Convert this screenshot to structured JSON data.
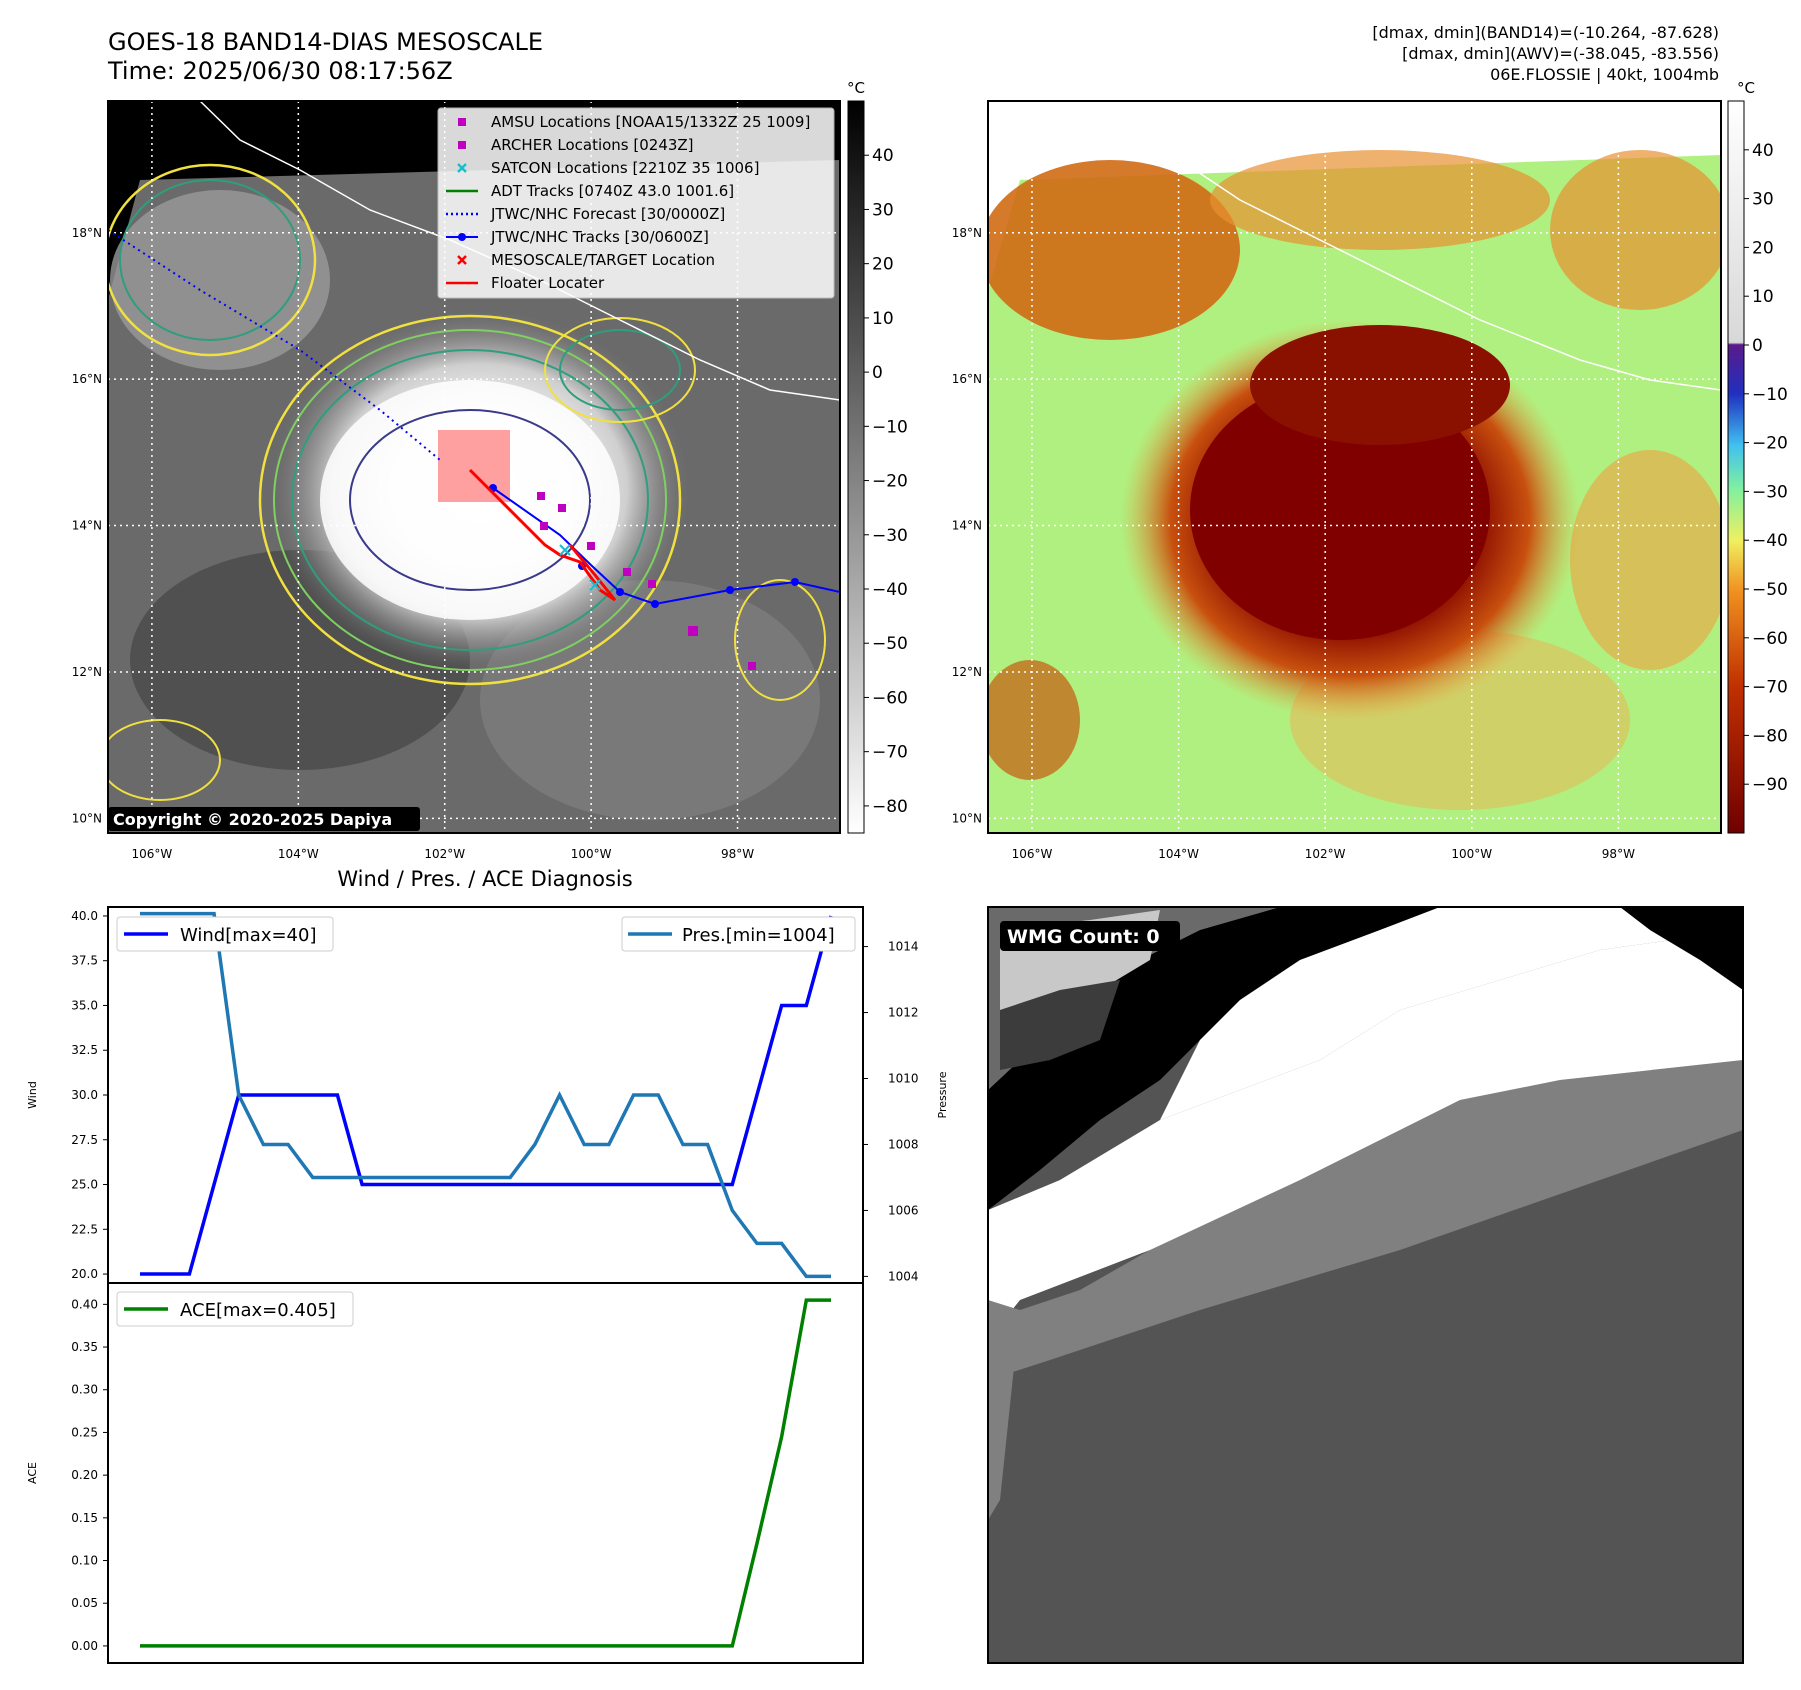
{
  "header": {
    "title_line1": "GOES-18 BAND14-DIAS MESOSCALE",
    "title_line2": "Time: 2025/06/30 08:17:56Z",
    "info_line1": "[dmax, dmin](BAND14)=(-10.264, -87.628)",
    "info_line2": "[dmax, dmin](AWV)=(-38.045, -83.556)",
    "info_line3": "06E.FLOSSIE | 40kt, 1004mb"
  },
  "map_axes": {
    "lat_labels": [
      "18°N",
      "16°N",
      "14°N",
      "12°N",
      "10°N"
    ],
    "lon_labels": [
      "106°W",
      "104°W",
      "102°W",
      "100°W",
      "98°W"
    ],
    "lat_values": [
      18,
      16,
      14,
      12,
      10
    ],
    "lon_values": [
      -106,
      -104,
      -102,
      -100,
      -98
    ],
    "lat_range": [
      9.8,
      19.8
    ],
    "lon_range": [
      -106.6,
      -96.6
    ]
  },
  "left_map": {
    "copyright": "Copyright © 2020-2025 Dapiya",
    "legend": [
      {
        "label": "AMSU Locations [NOAA15/1332Z 25 1009]",
        "marker": "square",
        "color": "#c000c0"
      },
      {
        "label": "ARCHER Locations [0243Z]",
        "marker": "square",
        "color": "#c000c0"
      },
      {
        "label": "SATCON Locations [2210Z 35 1006]",
        "marker": "x",
        "color": "#17becf"
      },
      {
        "label": "ADT Tracks [0740Z 43.0 1001.6]",
        "marker": "line",
        "color": "#008000"
      },
      {
        "label": "JTWC/NHC Forecast [30/0000Z]",
        "marker": "dotted",
        "color": "#0000ff"
      },
      {
        "label": "JTWC/NHC Tracks [30/0600Z]",
        "marker": "line-dot",
        "color": "#0000ff"
      },
      {
        "label": "MESOSCALE/TARGET Location",
        "marker": "x",
        "color": "#ff0000"
      },
      {
        "label": "Floater Locater",
        "marker": "line",
        "color": "#ff0000"
      }
    ],
    "colorbar": {
      "unit": "°C",
      "ticks": [
        40,
        30,
        20,
        10,
        0,
        -10,
        -20,
        -30,
        -40,
        -50,
        -60,
        -70,
        -80
      ],
      "range": [
        -85,
        50
      ]
    }
  },
  "right_map": {
    "colorbar": {
      "unit": "°C",
      "ticks": [
        40,
        30,
        20,
        10,
        0,
        -10,
        -20,
        -30,
        -40,
        -50,
        -60,
        -70,
        -80,
        -90
      ],
      "range": [
        -100,
        50
      ]
    }
  },
  "chart_data": [
    {
      "type": "line",
      "title": "Wind / Pres. / ACE Diagnosis",
      "ylabel": "Wind",
      "y2label": "Pressure",
      "x": [
        0,
        1,
        2,
        3,
        4,
        5,
        6,
        7,
        8,
        9,
        10,
        11,
        12,
        13,
        14,
        15,
        16,
        17,
        18,
        19,
        20,
        21,
        22,
        23,
        24,
        25,
        26,
        27,
        28
      ],
      "ylim": [
        19.5,
        40.5
      ],
      "y2lim": [
        1003.8,
        1015.2
      ],
      "yticks": [
        "20.0",
        "22.5",
        "25.0",
        "27.5",
        "30.0",
        "32.5",
        "35.0",
        "37.5",
        "40.0"
      ],
      "y2ticks": [
        "1004",
        "1006",
        "1008",
        "1010",
        "1012",
        "1014"
      ],
      "series": [
        {
          "name": "Wind[max=40]",
          "color": "#0000ff",
          "axis": "left",
          "values": [
            20,
            20,
            20,
            25,
            30,
            30,
            30,
            30,
            30,
            25,
            25,
            25,
            25,
            25,
            25,
            25,
            25,
            25,
            25,
            25,
            25,
            25,
            25,
            25,
            25,
            30,
            35,
            35,
            40
          ]
        },
        {
          "name": "Pres.[min=1004]",
          "color": "#1f77b4",
          "axis": "right",
          "values": [
            1015,
            1015,
            1015,
            1015,
            1009.5,
            1008,
            1008,
            1007,
            1007,
            1007,
            1007,
            1007,
            1007,
            1007,
            1007,
            1007,
            1008,
            1009.5,
            1008,
            1008,
            1009.5,
            1009.5,
            1008,
            1008,
            1006,
            1005,
            1005,
            1004,
            1004
          ]
        }
      ]
    },
    {
      "type": "line",
      "ylabel": "ACE",
      "x": [
        0,
        1,
        2,
        3,
        4,
        5,
        6,
        7,
        8,
        9,
        10,
        11,
        12,
        13,
        14,
        15,
        16,
        17,
        18,
        19,
        20,
        21,
        22,
        23,
        24,
        25,
        26,
        27,
        28
      ],
      "ylim": [
        -0.02,
        0.425
      ],
      "yticks": [
        "0.00",
        "0.05",
        "0.10",
        "0.15",
        "0.20",
        "0.25",
        "0.30",
        "0.35",
        "0.40"
      ],
      "series": [
        {
          "name": "ACE[max=0.405]",
          "color": "#008000",
          "values": [
            0,
            0,
            0,
            0,
            0,
            0,
            0,
            0,
            0,
            0,
            0,
            0,
            0,
            0,
            0,
            0,
            0,
            0,
            0,
            0,
            0,
            0,
            0,
            0,
            0,
            0.12,
            0.245,
            0.405,
            0.405
          ]
        }
      ]
    }
  ],
  "wmg_panel": {
    "label": "WMG Count: 0"
  }
}
